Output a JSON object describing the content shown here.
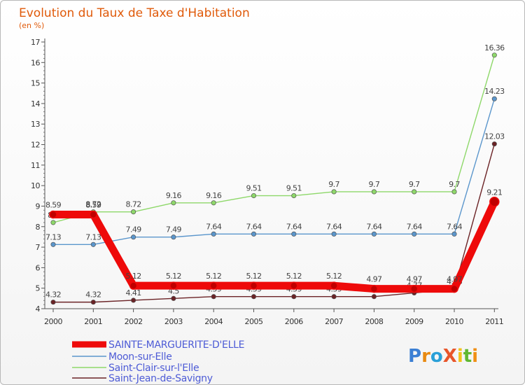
{
  "chart_data": {
    "type": "line",
    "title": "Evolution du Taux de Taxe d'Habitation",
    "subtitle": "(en %)",
    "xlabel": "",
    "ylabel": "",
    "x": [
      "2000",
      "2001",
      "2002",
      "2003",
      "2004",
      "2005",
      "2006",
      "2007",
      "2008",
      "2009",
      "2010",
      "2011"
    ],
    "ylim": [
      4,
      17
    ],
    "yticks": [
      "4",
      "5",
      "6",
      "7",
      "8",
      "9",
      "10",
      "11",
      "12",
      "13",
      "14",
      "15",
      "16",
      "17"
    ],
    "grid": false,
    "legend_position": "bottom-left",
    "series": [
      {
        "name": "SAINTE-MARGUERITE-D'ELLE",
        "color": "#ee0a0a",
        "values": [
          8.59,
          8.59,
          5.12,
          5.12,
          5.12,
          5.12,
          5.12,
          5.12,
          4.97,
          4.97,
          4.97,
          9.21
        ],
        "labels": [
          "8.59",
          "8.59",
          "5.12",
          "5.12",
          "5.12",
          "5.12",
          "5.12",
          "5.12",
          "4.97",
          "4.97",
          "4.97",
          "9.21"
        ]
      },
      {
        "name": "Moon-sur-Elle",
        "color": "#5b96cc",
        "values": [
          7.13,
          7.13,
          7.49,
          7.49,
          7.64,
          7.64,
          7.64,
          7.64,
          7.64,
          7.64,
          7.64,
          14.23
        ],
        "labels": [
          "7.13",
          "7.13",
          "7.49",
          "7.49",
          "7.64",
          "7.64",
          "7.64",
          "7.64",
          "7.64",
          "7.64",
          "7.64",
          "14.23"
        ]
      },
      {
        "name": "Saint-Clair-sur-l'Elle",
        "color": "#8ed86a",
        "values": [
          8.2,
          8.72,
          8.72,
          9.16,
          9.16,
          9.51,
          9.51,
          9.7,
          9.7,
          9.7,
          9.7,
          16.36
        ],
        "labels": [
          "8.2",
          "8.72",
          "8.72",
          "9.16",
          "9.16",
          "9.51",
          "9.51",
          "9.7",
          "9.7",
          "9.7",
          "9.7",
          "16.36"
        ]
      },
      {
        "name": "Saint-Jean-de-Savigny",
        "color": "#6b2326",
        "values": [
          4.32,
          4.32,
          4.41,
          4.5,
          4.59,
          4.59,
          4.59,
          4.59,
          4.59,
          4.77,
          4.96,
          12.03
        ],
        "labels": [
          "4.32",
          "4.32",
          "4.41",
          "4.5",
          "4.59",
          "4.59",
          "4.59",
          "4.59",
          "4.59",
          "4.77",
          "4.96",
          "12.03"
        ]
      }
    ]
  },
  "branding": {
    "logo_text": "ProXiti"
  }
}
